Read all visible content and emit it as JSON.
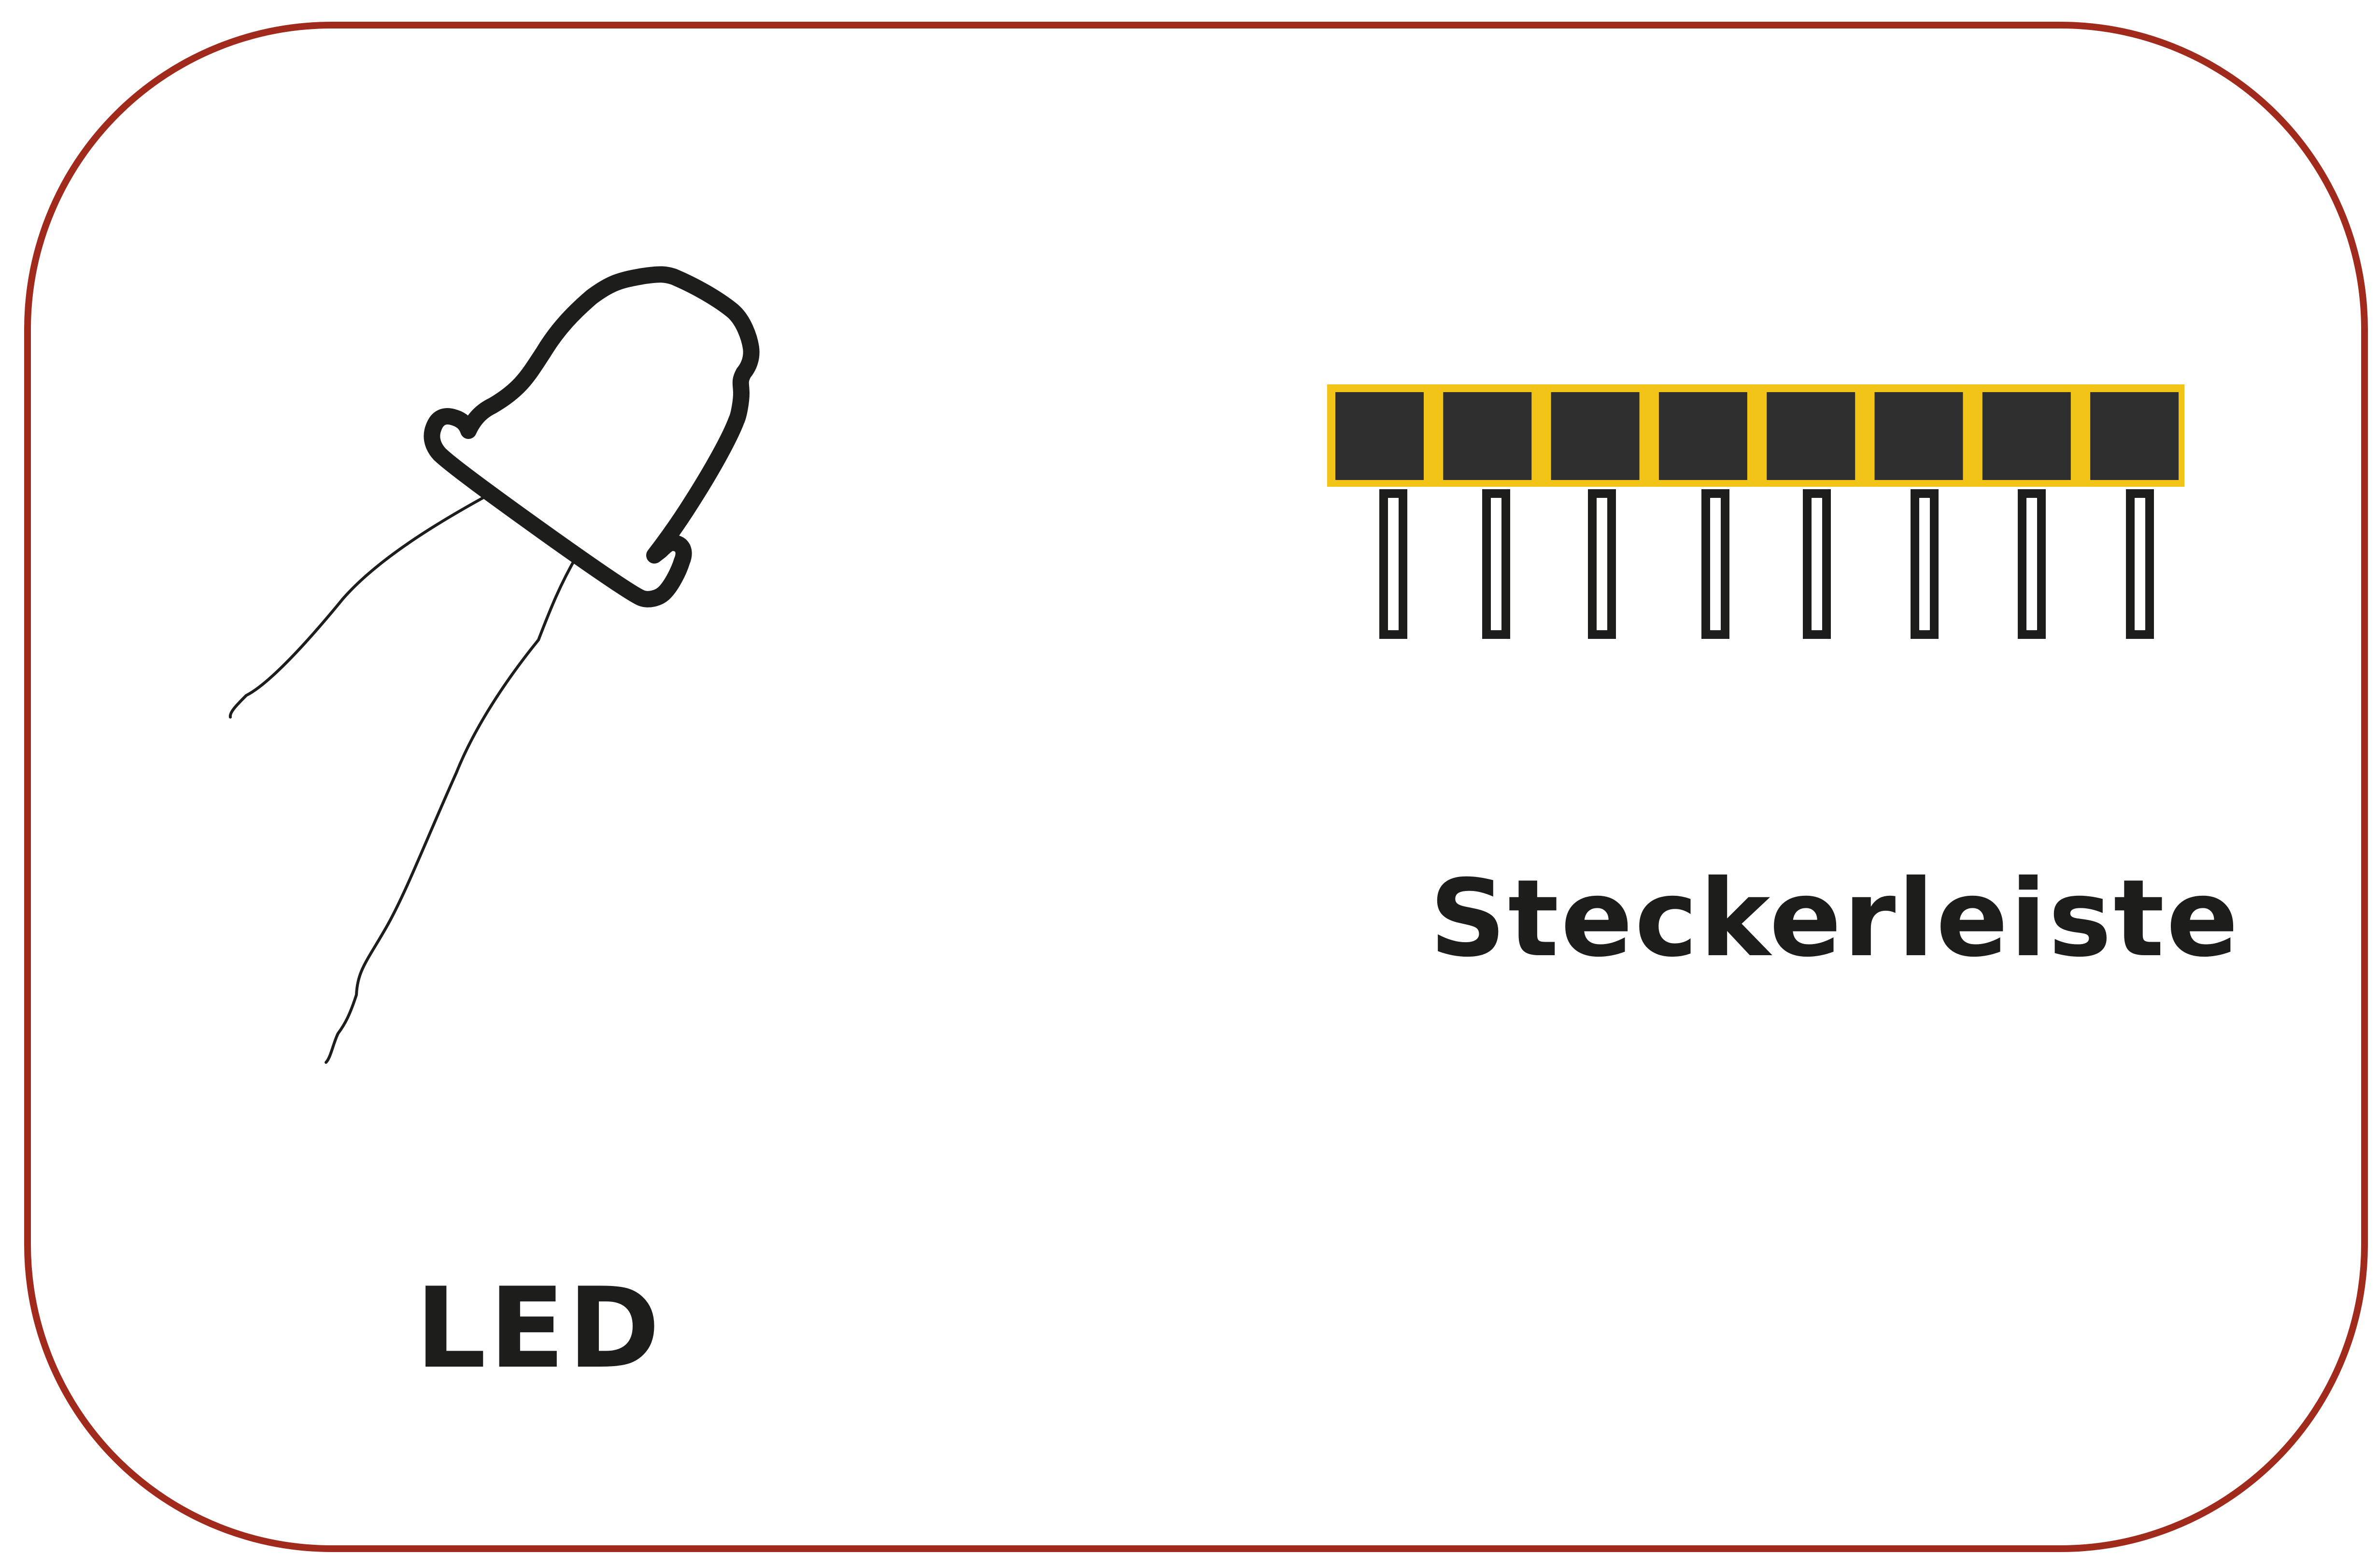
{
  "colors": {
    "frame": "#a02a1b",
    "outline": "#1d1d1b",
    "socket_fill": "#2f2f2f",
    "header_body": "#f2c418",
    "background": "#ffffff"
  },
  "labels": {
    "led": "LED",
    "header": "Steckerleiste"
  },
  "components": {
    "led_icon": "led-icon",
    "header_icon": "pin-header-icon",
    "header_socket_count": 8,
    "header_pin_count": 8
  }
}
